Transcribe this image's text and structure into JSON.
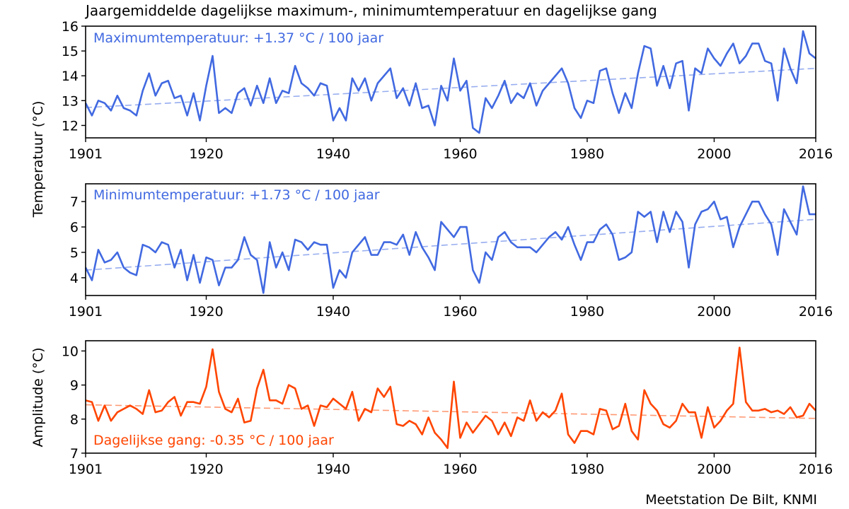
{
  "chart_data": [
    {
      "type": "line",
      "title": "Jaargemiddelde dagelijkse maximum-, minimumtemperatuur en dagelijkse gang",
      "annotation": "Maximumtemperatuur: +1.37  °C / 100 jaar",
      "ylabel": "Temperatuur (°C)",
      "xlim": [
        1901,
        2016
      ],
      "ylim": [
        11.5,
        16
      ],
      "xticks": [
        "1901",
        "1920",
        "1940",
        "1960",
        "1980",
        "2000",
        "2016"
      ],
      "yticks": [
        "12",
        "13",
        "14",
        "15",
        "16"
      ],
      "color": "#4169e1",
      "trend": {
        "start": [
          1901,
          12.72
        ],
        "end": [
          2016,
          14.3
        ]
      },
      "series": [
        {
          "name": "Maximumtemperatuur",
          "x_start": 1901,
          "values": [
            12.9,
            12.4,
            13.0,
            12.9,
            12.6,
            13.2,
            12.7,
            12.6,
            12.4,
            13.4,
            14.1,
            13.2,
            13.7,
            13.8,
            13.1,
            13.2,
            12.4,
            13.3,
            12.2,
            13.6,
            14.8,
            12.5,
            12.7,
            12.5,
            13.3,
            13.5,
            12.8,
            13.6,
            12.9,
            13.9,
            12.9,
            13.4,
            13.3,
            14.4,
            13.7,
            13.5,
            13.2,
            13.7,
            13.6,
            12.2,
            12.7,
            12.2,
            13.9,
            13.4,
            13.9,
            13.0,
            13.7,
            14.0,
            14.3,
            13.1,
            13.5,
            12.8,
            13.7,
            12.7,
            12.8,
            12.0,
            13.6,
            13.0,
            14.7,
            13.4,
            13.8,
            11.9,
            11.7,
            13.1,
            12.7,
            13.2,
            13.8,
            12.9,
            13.3,
            13.1,
            13.7,
            12.8,
            13.4,
            13.7,
            14.0,
            14.3,
            13.7,
            12.7,
            12.3,
            13.0,
            12.9,
            14.2,
            14.3,
            13.3,
            12.5,
            13.3,
            12.7,
            14.1,
            15.2,
            15.1,
            13.6,
            14.4,
            13.5,
            14.5,
            14.6,
            12.6,
            14.3,
            14.1,
            15.1,
            14.7,
            14.4,
            14.9,
            15.3,
            14.5,
            14.8,
            15.3,
            15.3,
            14.6,
            14.5,
            13.0,
            15.1,
            14.3,
            13.7,
            15.8,
            14.9,
            14.7
          ]
        }
      ]
    },
    {
      "type": "line",
      "annotation": "Minimumtemperatuur: +1.73  °C / 100 jaar",
      "ylabel": "Temperatuur (°C)",
      "xlim": [
        1901,
        2016
      ],
      "ylim": [
        3.3,
        7.7
      ],
      "xticks": [
        "1901",
        "1920",
        "1940",
        "1960",
        "1980",
        "2000",
        "2016"
      ],
      "yticks": [
        "4",
        "5",
        "6",
        "7"
      ],
      "color": "#4169e1",
      "trend": {
        "start": [
          1901,
          4.3
        ],
        "end": [
          2016,
          6.3
        ]
      },
      "series": [
        {
          "name": "Minimumtemperatuur",
          "x_start": 1901,
          "values": [
            4.4,
            3.9,
            5.1,
            4.6,
            4.7,
            5.0,
            4.4,
            4.2,
            4.1,
            5.3,
            5.2,
            5.0,
            5.4,
            5.3,
            4.4,
            5.1,
            3.9,
            4.9,
            3.8,
            4.8,
            4.7,
            3.7,
            4.4,
            4.4,
            4.7,
            5.6,
            4.9,
            4.7,
            3.4,
            5.4,
            4.4,
            5.0,
            4.3,
            5.5,
            5.4,
            5.1,
            5.4,
            5.3,
            5.3,
            3.6,
            4.3,
            4.0,
            5.0,
            5.3,
            5.6,
            4.9,
            4.9,
            5.4,
            5.4,
            5.3,
            5.7,
            4.9,
            5.8,
            5.2,
            4.8,
            4.3,
            6.2,
            5.9,
            5.6,
            6.0,
            6.0,
            4.3,
            3.8,
            5.0,
            4.7,
            5.6,
            5.8,
            5.4,
            5.2,
            5.2,
            5.2,
            5.0,
            5.3,
            5.6,
            5.8,
            5.5,
            6.0,
            5.3,
            4.7,
            5.4,
            5.4,
            5.9,
            6.1,
            5.7,
            4.7,
            4.8,
            5.0,
            6.6,
            6.4,
            6.6,
            5.4,
            6.6,
            5.8,
            6.6,
            6.2,
            4.4,
            6.1,
            6.6,
            6.7,
            7.0,
            6.3,
            6.4,
            5.2,
            6.0,
            6.5,
            7.0,
            7.0,
            6.5,
            6.1,
            4.9,
            6.7,
            6.2,
            5.7,
            7.6,
            6.5,
            6.5
          ]
        }
      ]
    },
    {
      "type": "line",
      "annotation": "Dagelijkse gang: -0.35  °C / 100 jaar",
      "ylabel": "Amplitude (°C)",
      "xlim": [
        1901,
        2016
      ],
      "ylim": [
        7.0,
        10.3
      ],
      "xticks": [
        "1901",
        "1920",
        "1940",
        "1960",
        "1980",
        "2000",
        "2016"
      ],
      "yticks": [
        "7",
        "8",
        "9",
        "10"
      ],
      "color": "#ff4500",
      "trend": {
        "start": [
          1901,
          8.42
        ],
        "end": [
          2016,
          8.02
        ]
      },
      "series": [
        {
          "name": "Dagelijkse gang",
          "x_start": 1901,
          "values": [
            8.55,
            8.5,
            7.95,
            8.4,
            7.95,
            8.2,
            8.3,
            8.4,
            8.3,
            8.15,
            8.85,
            8.2,
            8.25,
            8.5,
            8.65,
            8.1,
            8.5,
            8.5,
            8.45,
            8.95,
            10.05,
            8.8,
            8.3,
            8.2,
            8.6,
            7.9,
            7.95,
            8.9,
            9.45,
            8.55,
            8.55,
            8.45,
            9.0,
            8.9,
            8.3,
            8.4,
            7.8,
            8.4,
            8.35,
            8.6,
            8.45,
            8.3,
            8.8,
            7.95,
            8.3,
            8.2,
            8.9,
            8.65,
            8.95,
            7.85,
            7.8,
            7.95,
            7.85,
            7.55,
            8.05,
            7.6,
            7.4,
            7.15,
            9.1,
            7.45,
            7.9,
            7.6,
            7.85,
            8.1,
            7.95,
            7.55,
            7.9,
            7.5,
            8.05,
            7.95,
            8.55,
            7.95,
            8.2,
            8.05,
            8.25,
            8.75,
            7.55,
            7.3,
            7.65,
            7.65,
            7.55,
            8.3,
            8.25,
            7.7,
            7.8,
            8.45,
            7.65,
            7.4,
            8.85,
            8.45,
            8.25,
            7.85,
            7.75,
            7.95,
            8.45,
            8.2,
            8.2,
            7.45,
            8.35,
            7.75,
            7.95,
            8.25,
            8.45,
            10.1,
            8.5,
            8.25,
            8.25,
            8.3,
            8.2,
            8.25,
            8.15,
            8.35,
            8.05,
            8.1,
            8.45,
            8.25
          ]
        }
      ]
    }
  ],
  "footer": {
    "credit": "Meetstation De Bilt, KNMI"
  }
}
